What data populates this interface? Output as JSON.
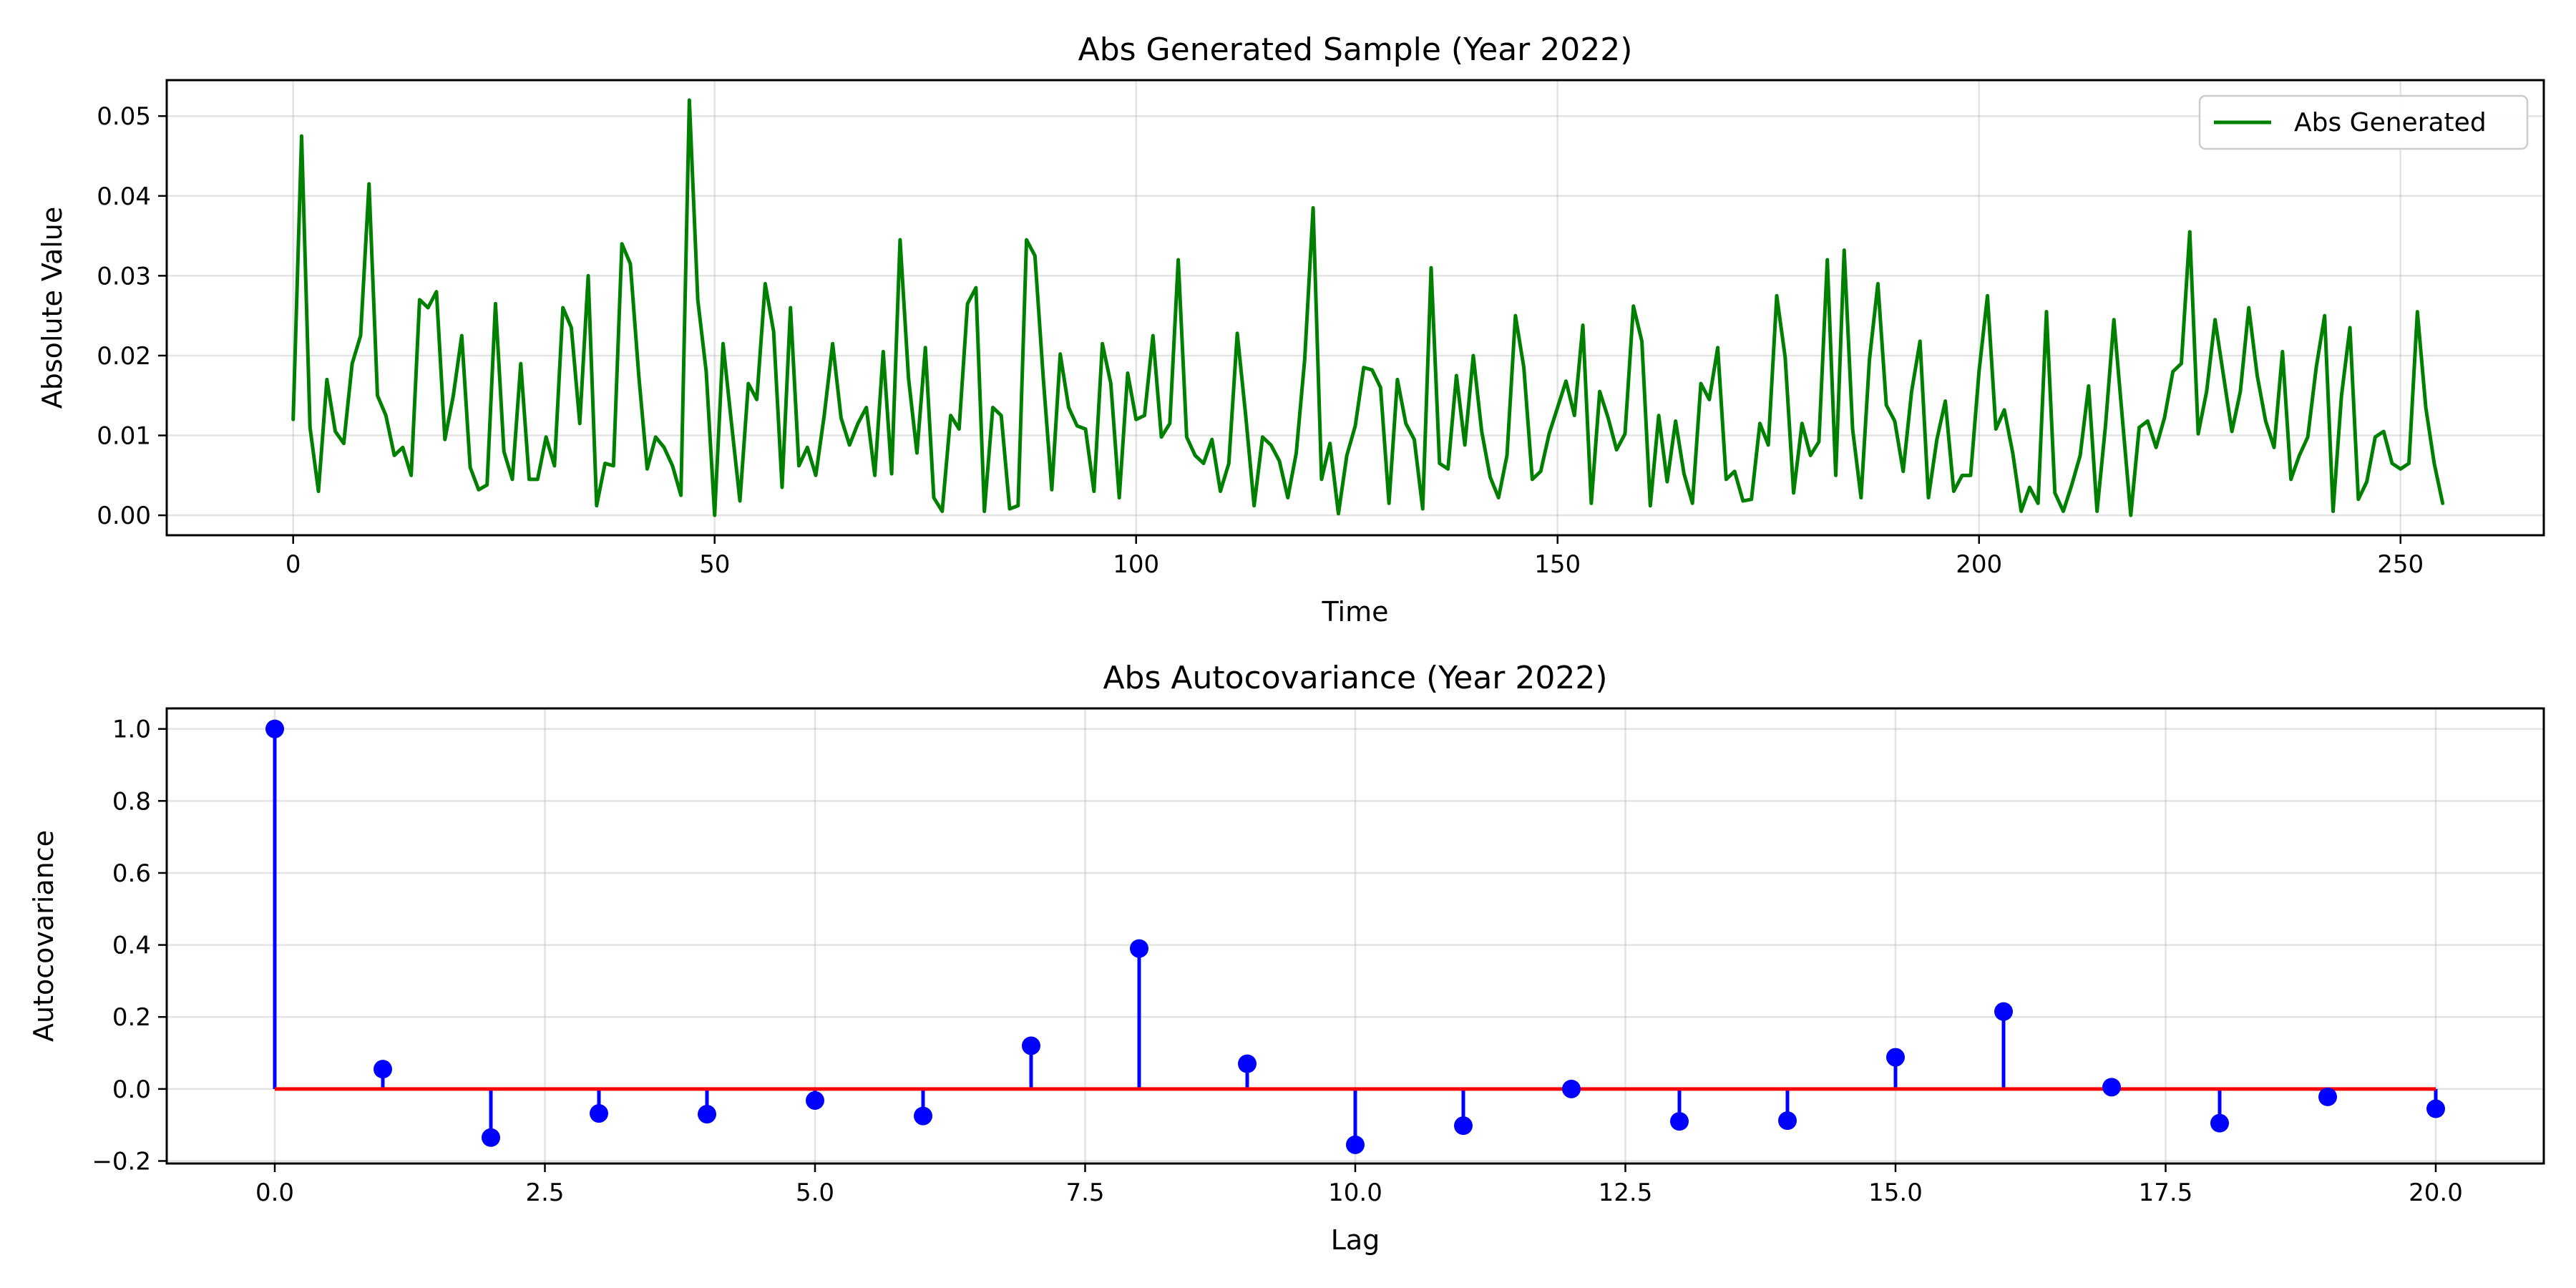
{
  "chart_data": [
    {
      "type": "line",
      "title": "Abs Generated Sample (Year 2022)",
      "xlabel": "Time",
      "ylabel": "Absolute Value",
      "xlim": [
        -15,
        267
      ],
      "ylim": [
        -0.0025,
        0.0545
      ],
      "xticks": [
        0,
        50,
        100,
        150,
        200,
        250
      ],
      "xtick_labels": [
        "0",
        "50",
        "100",
        "150",
        "200",
        "250"
      ],
      "yticks": [
        0.0,
        0.01,
        0.02,
        0.03,
        0.04,
        0.05
      ],
      "ytick_labels": [
        "0.00",
        "0.01",
        "0.02",
        "0.03",
        "0.04",
        "0.05"
      ],
      "grid": true,
      "legend_position": "top-right",
      "series": [
        {
          "name": "Abs Generated",
          "color": "#008000",
          "x_start": 0,
          "x_step": 1,
          "values": [
            0.012,
            0.0475,
            0.011,
            0.003,
            0.017,
            0.0105,
            0.009,
            0.019,
            0.0225,
            0.0415,
            0.015,
            0.0125,
            0.0075,
            0.0085,
            0.005,
            0.027,
            0.026,
            0.028,
            0.0095,
            0.015,
            0.0225,
            0.006,
            0.0032,
            0.0038,
            0.0265,
            0.008,
            0.0045,
            0.019,
            0.0045,
            0.0045,
            0.0098,
            0.0062,
            0.026,
            0.0235,
            0.0115,
            0.03,
            0.0012,
            0.0065,
            0.0062,
            0.034,
            0.0315,
            0.0175,
            0.0058,
            0.0098,
            0.0085,
            0.0062,
            0.0025,
            0.052,
            0.027,
            0.018,
            0.0,
            0.0215,
            0.0115,
            0.0018,
            0.0165,
            0.0145,
            0.029,
            0.023,
            0.0035,
            0.026,
            0.0062,
            0.0085,
            0.005,
            0.0125,
            0.0215,
            0.0122,
            0.0088,
            0.0115,
            0.0135,
            0.005,
            0.0205,
            0.0052,
            0.0345,
            0.0172,
            0.0078,
            0.021,
            0.0022,
            0.0005,
            0.0125,
            0.0108,
            0.0265,
            0.0285,
            0.0005,
            0.0135,
            0.0125,
            0.0008,
            0.0012,
            0.0345,
            0.0325,
            0.017,
            0.0032,
            0.0202,
            0.0135,
            0.0112,
            0.0108,
            0.003,
            0.0215,
            0.0165,
            0.0022,
            0.0178,
            0.012,
            0.0125,
            0.0225,
            0.0098,
            0.0115,
            0.032,
            0.0098,
            0.0075,
            0.0065,
            0.0095,
            0.003,
            0.0065,
            0.0228,
            0.0125,
            0.0012,
            0.0098,
            0.0088,
            0.0068,
            0.0022,
            0.0078,
            0.0195,
            0.0385,
            0.0045,
            0.009,
            0.0002,
            0.0075,
            0.0112,
            0.0185,
            0.0182,
            0.016,
            0.0015,
            0.017,
            0.0115,
            0.0095,
            0.0008,
            0.031,
            0.0065,
            0.0058,
            0.0175,
            0.0088,
            0.02,
            0.0105,
            0.0048,
            0.0022,
            0.0075,
            0.025,
            0.0185,
            0.0045,
            0.0055,
            0.0102,
            0.0135,
            0.0168,
            0.0125,
            0.0238,
            0.0015,
            0.0155,
            0.0122,
            0.0082,
            0.0102,
            0.0262,
            0.0218,
            0.0012,
            0.0125,
            0.0042,
            0.0118,
            0.0052,
            0.0015,
            0.0165,
            0.0145,
            0.021,
            0.0045,
            0.0055,
            0.0018,
            0.002,
            0.0115,
            0.0088,
            0.0275,
            0.0198,
            0.0028,
            0.0115,
            0.0075,
            0.0092,
            0.032,
            0.005,
            0.0332,
            0.0108,
            0.0022,
            0.0195,
            0.029,
            0.0138,
            0.0118,
            0.0055,
            0.0155,
            0.0218,
            0.0022,
            0.0095,
            0.0143,
            0.003,
            0.005,
            0.005,
            0.018,
            0.0275,
            0.0108,
            0.0132,
            0.0078,
            0.0005,
            0.0035,
            0.0015,
            0.0255,
            0.0028,
            0.0005,
            0.0038,
            0.0075,
            0.0162,
            0.0005,
            0.0112,
            0.0245,
            0.0122,
            0.0,
            0.011,
            0.0118,
            0.0085,
            0.0122,
            0.018,
            0.019,
            0.0355,
            0.0102,
            0.0155,
            0.0245,
            0.0175,
            0.0105,
            0.0155,
            0.026,
            0.0175,
            0.0118,
            0.0085,
            0.0205,
            0.0045,
            0.0075,
            0.0098,
            0.0185,
            0.025,
            0.0005,
            0.015,
            0.0235,
            0.002,
            0.0042,
            0.0098,
            0.0105,
            0.0065,
            0.0058,
            0.0065,
            0.0255,
            0.0135,
            0.0065,
            0.0015
          ]
        }
      ]
    },
    {
      "type": "stem",
      "title": "Abs Autocovariance (Year 2022)",
      "xlabel": "Lag",
      "ylabel": "Autocovariance",
      "xlim": [
        -1.0,
        21.0
      ],
      "ylim": [
        -0.207,
        1.057
      ],
      "xticks": [
        0.0,
        2.5,
        5.0,
        7.5,
        10.0,
        12.5,
        15.0,
        17.5,
        20.0
      ],
      "xtick_labels": [
        "0.0",
        "2.5",
        "5.0",
        "7.5",
        "10.0",
        "12.5",
        "15.0",
        "17.5",
        "20.0"
      ],
      "yticks": [
        -0.2,
        0.0,
        0.2,
        0.4,
        0.6,
        0.8,
        1.0
      ],
      "ytick_labels": [
        "−0.2",
        "0.0",
        "0.2",
        "0.4",
        "0.6",
        "0.8",
        "1.0"
      ],
      "grid": true,
      "baseline": 0.0,
      "stem_color": "#0000ff",
      "baseline_color": "#ff0000",
      "x": [
        0,
        1,
        2,
        3,
        4,
        5,
        6,
        7,
        8,
        9,
        10,
        11,
        12,
        13,
        14,
        15,
        16,
        17,
        18,
        19,
        20
      ],
      "values": [
        1.0,
        0.055,
        -0.135,
        -0.068,
        -0.07,
        -0.032,
        -0.075,
        0.12,
        0.39,
        0.07,
        -0.155,
        -0.102,
        0.0,
        -0.09,
        -0.088,
        0.088,
        0.215,
        0.005,
        -0.095,
        -0.022,
        -0.055
      ]
    }
  ]
}
